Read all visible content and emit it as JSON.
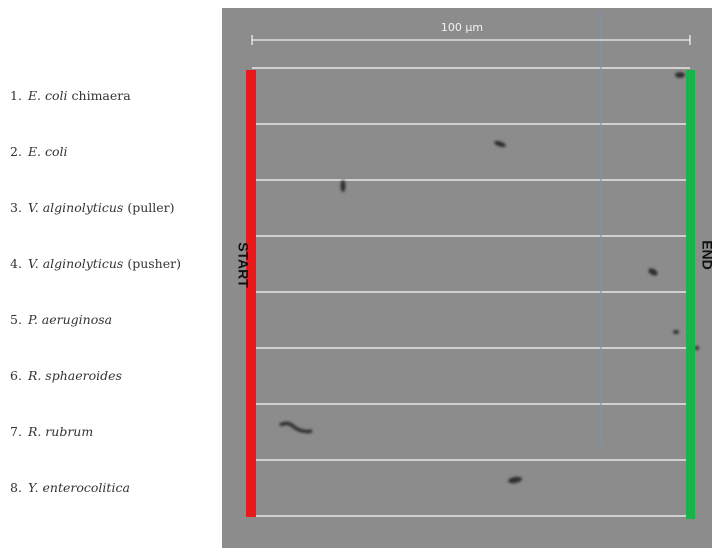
{
  "scale_bar": {
    "label": "100 μm"
  },
  "start_label": "START",
  "end_label": "END",
  "lanes": [
    {
      "number": "1.",
      "species": "E. coli",
      "note": "chimaera"
    },
    {
      "number": "2.",
      "species": "E. coli"
    },
    {
      "number": "3.",
      "species": "V. alginolyticus",
      "note": "(puller)"
    },
    {
      "number": "4.",
      "species": "V. alginolyticus",
      "note": "(pusher)"
    },
    {
      "number": "5.",
      "species": "P. aeruginosa"
    },
    {
      "number": "6.",
      "species": "R. sphaeroides"
    },
    {
      "number": "7.",
      "species": "R. rubrum"
    },
    {
      "number": "8.",
      "species": "Y. enterocolitica"
    }
  ]
}
